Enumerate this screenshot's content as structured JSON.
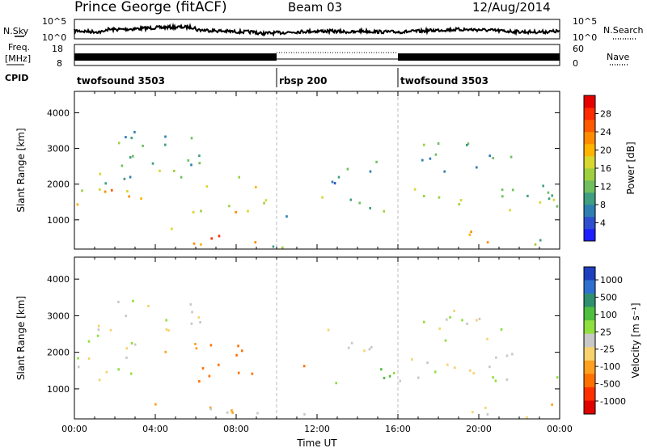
{
  "header": {
    "station": "Prince George (fitACF)",
    "beam": "Beam 03",
    "date": "12/Aug/2014"
  },
  "strips": {
    "nsky_label": "N.Sky",
    "nsky_ticks": [
      "10^5",
      "10^0"
    ],
    "nsearch_label": "N.Search",
    "freq_label_1": "Freq.",
    "freq_label_2": "[MHz]",
    "freq_ticks": [
      "18",
      "8"
    ],
    "nave_ticks": [
      "60",
      "0"
    ],
    "nave_label": "Nave",
    "cpid_label": "CPID",
    "cpid_segments": [
      {
        "label": "twofsound 3503",
        "start_hour": 0,
        "end_hour": 10
      },
      {
        "label": "rbsp 200",
        "start_hour": 10,
        "end_hour": 16
      },
      {
        "label": "twofsound 3503",
        "start_hour": 16,
        "end_hour": 24
      }
    ]
  },
  "chart_data": [
    {
      "type": "heatmap",
      "name": "power-panel",
      "xlabel": "",
      "ylabel": "Slant Range [km]",
      "x_ticks": [
        "00:00",
        "04:00",
        "08:00",
        "12:00",
        "16:00",
        "20:00",
        "00:00"
      ],
      "x_range_hours": [
        0,
        24
      ],
      "y_ticks": [
        "1000",
        "2000",
        "3000",
        "4000"
      ],
      "y_range_km": [
        180,
        4600
      ],
      "colorbar": {
        "label": "Power [dB]",
        "ticks": [
          "4",
          "8",
          "12",
          "16",
          "20",
          "24",
          "28"
        ],
        "range": [
          0,
          32
        ],
        "colors": [
          "#1f1fff",
          "#2f4fd0",
          "#2f7fb0",
          "#3f9f80",
          "#6fbf5f",
          "#9fcf3f",
          "#d7d72f",
          "#ffb400",
          "#ff8c00",
          "#ff5a00",
          "#ff2a00",
          "#e60000"
        ]
      },
      "blobs": [
        {
          "t0": 0.1,
          "t1": 3.5,
          "r0": 1200,
          "r1": 2000,
          "v": 22
        },
        {
          "t0": 0.2,
          "t1": 3.0,
          "r0": 1800,
          "r1": 2800,
          "v": 12
        },
        {
          "t0": 1.0,
          "t1": 6.2,
          "r0": 2500,
          "r1": 3500,
          "v": 10
        },
        {
          "t0": 3.5,
          "t1": 6.0,
          "r0": 1900,
          "r1": 2400,
          "v": 14
        },
        {
          "t0": 3.5,
          "t1": 5.0,
          "r0": 500,
          "r1": 850,
          "v": 18
        },
        {
          "t0": 5.8,
          "t1": 9.5,
          "r0": 1200,
          "r1": 2200,
          "v": 18
        },
        {
          "t0": 6.5,
          "t1": 9.8,
          "r0": 300,
          "r1": 600,
          "v": 24
        },
        {
          "t0": 5.5,
          "t1": 7.8,
          "r0": 180,
          "r1": 500,
          "v": 18
        },
        {
          "t0": 9.0,
          "t1": 11.5,
          "r0": 180,
          "r1": 420,
          "v": 10
        },
        {
          "t0": 10.3,
          "t1": 13.0,
          "r0": 1000,
          "r1": 1200,
          "v": 8
        },
        {
          "t0": 11.0,
          "t1": 12.4,
          "r0": 1600,
          "r1": 2000,
          "v": 16
        },
        {
          "t0": 12.5,
          "t1": 15.5,
          "r0": 2000,
          "r1": 2800,
          "v": 8
        },
        {
          "t0": 13.0,
          "t1": 16.5,
          "r0": 1200,
          "r1": 1600,
          "v": 10
        },
        {
          "t0": 16.0,
          "t1": 24.0,
          "r0": 1200,
          "r1": 2000,
          "v": 14
        },
        {
          "t0": 17.0,
          "t1": 22.0,
          "r0": 2300,
          "r1": 3200,
          "v": 10
        },
        {
          "t0": 19.0,
          "t1": 22.0,
          "r0": 300,
          "r1": 700,
          "v": 22
        },
        {
          "t0": 22.0,
          "t1": 24.0,
          "r0": 180,
          "r1": 600,
          "v": 14
        }
      ]
    },
    {
      "type": "heatmap",
      "name": "velocity-panel",
      "xlabel": "Time UT",
      "ylabel": "Slant Range [km]",
      "x_ticks": [
        "00:00",
        "04:00",
        "08:00",
        "12:00",
        "16:00",
        "20:00",
        "00:00"
      ],
      "x_range_hours": [
        0,
        24
      ],
      "y_ticks": [
        "1000",
        "2000",
        "3000",
        "4000"
      ],
      "y_range_km": [
        180,
        4600
      ],
      "colorbar": {
        "label": "Velocity [m s⁻¹]",
        "ticks": [
          "1000",
          "500",
          "100",
          "25",
          "-25",
          "-100",
          "-500",
          "-1000"
        ],
        "colors": [
          "#1f3fbf",
          "#2f6fd0",
          "#2f8f6f",
          "#4fbf3f",
          "#8fdf3f",
          "#c8c8c8",
          "#f7d26f",
          "#ffa020",
          "#ff7000",
          "#ff3000",
          "#e00000"
        ]
      },
      "blobs": [
        {
          "t0": 0.1,
          "t1": 3.5,
          "r0": 1200,
          "r1": 2000,
          "v": 25
        },
        {
          "t0": 0.2,
          "t1": 3.0,
          "r0": 1800,
          "r1": 2800,
          "v": 0
        },
        {
          "t0": 1.0,
          "t1": 6.2,
          "r0": 2500,
          "r1": 3500,
          "v": 0
        },
        {
          "t0": 3.5,
          "t1": 6.0,
          "r0": 1900,
          "r1": 2400,
          "v": -200
        },
        {
          "t0": 3.5,
          "t1": 5.0,
          "r0": 500,
          "r1": 850,
          "v": -300
        },
        {
          "t0": 5.8,
          "t1": 9.5,
          "r0": 1200,
          "r1": 2200,
          "v": -400
        },
        {
          "t0": 6.5,
          "t1": 9.8,
          "r0": 300,
          "r1": 600,
          "v": -60
        },
        {
          "t0": 5.5,
          "t1": 7.8,
          "r0": 180,
          "r1": 500,
          "v": -150
        },
        {
          "t0": 9.0,
          "t1": 11.5,
          "r0": 180,
          "r1": 420,
          "v": -40
        },
        {
          "t0": 10.3,
          "t1": 13.0,
          "r0": 1000,
          "r1": 1200,
          "v": 60
        },
        {
          "t0": 11.0,
          "t1": 12.4,
          "r0": 1600,
          "r1": 2000,
          "v": -300
        },
        {
          "t0": 12.5,
          "t1": 15.5,
          "r0": 2000,
          "r1": 2800,
          "v": 0
        },
        {
          "t0": 13.0,
          "t1": 16.5,
          "r0": 1200,
          "r1": 1600,
          "v": 150
        },
        {
          "t0": 16.0,
          "t1": 24.0,
          "r0": 1200,
          "r1": 2000,
          "v": 0
        },
        {
          "t0": 17.0,
          "t1": 22.0,
          "r0": 2300,
          "r1": 3200,
          "v": 10
        },
        {
          "t0": 19.0,
          "t1": 22.0,
          "r0": 300,
          "r1": 700,
          "v": -5
        },
        {
          "t0": 22.0,
          "t1": 24.0,
          "r0": 180,
          "r1": 600,
          "v": -60
        }
      ]
    }
  ]
}
